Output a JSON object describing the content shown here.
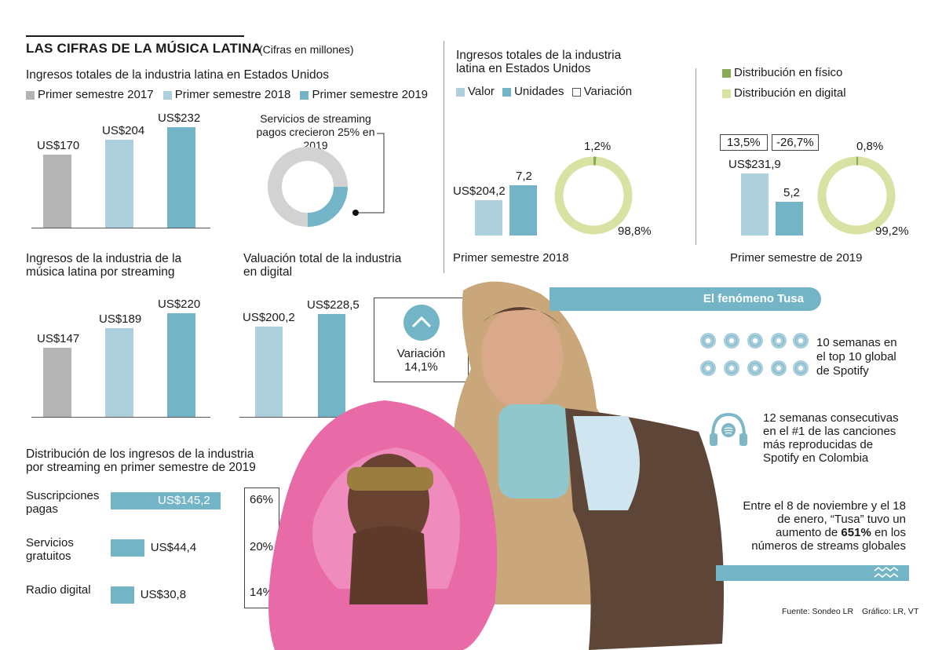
{
  "header": {
    "title": "LAS CIFRAS DE LA MÚSICA LATINA",
    "units": "(Cifras en millones)"
  },
  "colors": {
    "gray": "#b4b4b4",
    "light_blue": "#add0dc",
    "blue": "#74b4c7",
    "green_dark": "#8aab55",
    "green_light": "#d9e1a3"
  },
  "chart_data": [
    {
      "type": "bar",
      "title": "Ingresos totales de la industria latina en Estados Unidos",
      "categories": [
        "Primer semestre 2017",
        "Primer semestre 2018",
        "Primer semestre 2019"
      ],
      "values": [
        170,
        204,
        232
      ],
      "labels": [
        "US$170",
        "US$204",
        "US$232"
      ],
      "legend": [
        "Primer semestre 2017",
        "Primer semestre 2018",
        "Primer semestre 2019"
      ]
    },
    {
      "type": "pie",
      "title": "Servicios de streaming pagos crecieron 25% en 2019",
      "values": [
        75,
        25
      ]
    },
    {
      "type": "bar",
      "title": "Ingresos de la industria de la música latina por streaming",
      "values": [
        147,
        189,
        220
      ],
      "labels": [
        "US$147",
        "US$189",
        "US$220"
      ]
    },
    {
      "type": "bar",
      "title": "Valuación total de la industria en digital",
      "values": [
        200.2,
        228.5
      ],
      "labels": [
        "US$200,2",
        "US$228,5"
      ],
      "variation_label": "Variación",
      "variation_value": "14,1%"
    },
    {
      "type": "bar",
      "title": "Ingresos totales de la industria latina en Estados Unidos",
      "legend": [
        "Valor",
        "Unidades",
        "Variación"
      ],
      "period": "Primer semestre 2018",
      "values": [
        204.2,
        7.2
      ],
      "labels": [
        "US$204,2",
        "7,2"
      ],
      "pie": {
        "values": [
          1.2,
          98.8
        ],
        "labels": [
          "1,2%",
          "98,8%"
        ]
      }
    },
    {
      "type": "bar",
      "legend": [
        "Distribución en físico",
        "Distribución en digital"
      ],
      "period": "Primer semestre de 2019",
      "values": [
        231.9,
        5.2
      ],
      "labels": [
        "US$231,9",
        "5,2"
      ],
      "variations": [
        "13,5%",
        "-26,7%"
      ],
      "pie": {
        "values": [
          0.8,
          99.2
        ],
        "labels": [
          "0,8%",
          "99,2%"
        ]
      }
    },
    {
      "type": "bar",
      "title": "Distribución de los ingresos de la industria por streaming en primer semestre de 2019",
      "categories": [
        "Suscripciones pagas",
        "Servicios gratuitos",
        "Radio digital"
      ],
      "values": [
        145.2,
        44.4,
        30.8
      ],
      "labels": [
        "US$145,2",
        "US$44,4",
        "US$30,8"
      ],
      "shares": [
        "66%",
        "20%",
        "14%"
      ]
    }
  ],
  "tusa": {
    "title": "El fenómeno Tusa",
    "fact1": [
      "10 semanas en",
      "el top 10 global",
      "de Spotify"
    ],
    "fact2": [
      "12 semanas consecutivas",
      "en el #1 de las canciones",
      "más reproducidas de",
      "Spotify en Colombia"
    ],
    "fact3_line1": "Entre el 8 de noviembre y el 18",
    "fact3_line2": "de enero, “Tusa” tuvo un",
    "fact3_pre": "aumento de ",
    "fact3_bold": "651%",
    "fact3_post": " en los",
    "fact3_line4": "números de streams globales"
  },
  "footer": {
    "source": "Fuente: Sondeo LR",
    "graphic": "Gráfico: LR, VT"
  }
}
